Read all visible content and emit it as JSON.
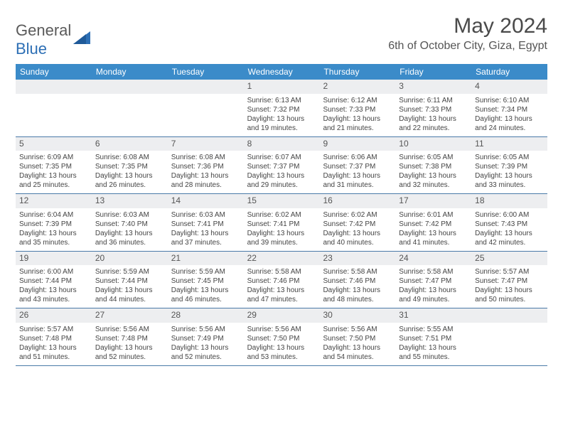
{
  "logo": {
    "part1": "General",
    "part2": "Blue"
  },
  "title": "May 2024",
  "location": "6th of October City, Giza, Egypt",
  "colors": {
    "header_bg": "#3b8bc9",
    "header_fg": "#ffffff",
    "daynum_bg": "#edeef0",
    "border": "#4a7aa8",
    "logo_blue": "#2d6fb5"
  },
  "weekdays": [
    "Sunday",
    "Monday",
    "Tuesday",
    "Wednesday",
    "Thursday",
    "Friday",
    "Saturday"
  ],
  "weeks": [
    [
      null,
      null,
      null,
      {
        "n": "1",
        "sr": "6:13 AM",
        "ss": "7:32 PM",
        "dl": "13 hours and 19 minutes."
      },
      {
        "n": "2",
        "sr": "6:12 AM",
        "ss": "7:33 PM",
        "dl": "13 hours and 21 minutes."
      },
      {
        "n": "3",
        "sr": "6:11 AM",
        "ss": "7:33 PM",
        "dl": "13 hours and 22 minutes."
      },
      {
        "n": "4",
        "sr": "6:10 AM",
        "ss": "7:34 PM",
        "dl": "13 hours and 24 minutes."
      }
    ],
    [
      {
        "n": "5",
        "sr": "6:09 AM",
        "ss": "7:35 PM",
        "dl": "13 hours and 25 minutes."
      },
      {
        "n": "6",
        "sr": "6:08 AM",
        "ss": "7:35 PM",
        "dl": "13 hours and 26 minutes."
      },
      {
        "n": "7",
        "sr": "6:08 AM",
        "ss": "7:36 PM",
        "dl": "13 hours and 28 minutes."
      },
      {
        "n": "8",
        "sr": "6:07 AM",
        "ss": "7:37 PM",
        "dl": "13 hours and 29 minutes."
      },
      {
        "n": "9",
        "sr": "6:06 AM",
        "ss": "7:37 PM",
        "dl": "13 hours and 31 minutes."
      },
      {
        "n": "10",
        "sr": "6:05 AM",
        "ss": "7:38 PM",
        "dl": "13 hours and 32 minutes."
      },
      {
        "n": "11",
        "sr": "6:05 AM",
        "ss": "7:39 PM",
        "dl": "13 hours and 33 minutes."
      }
    ],
    [
      {
        "n": "12",
        "sr": "6:04 AM",
        "ss": "7:39 PM",
        "dl": "13 hours and 35 minutes."
      },
      {
        "n": "13",
        "sr": "6:03 AM",
        "ss": "7:40 PM",
        "dl": "13 hours and 36 minutes."
      },
      {
        "n": "14",
        "sr": "6:03 AM",
        "ss": "7:41 PM",
        "dl": "13 hours and 37 minutes."
      },
      {
        "n": "15",
        "sr": "6:02 AM",
        "ss": "7:41 PM",
        "dl": "13 hours and 39 minutes."
      },
      {
        "n": "16",
        "sr": "6:02 AM",
        "ss": "7:42 PM",
        "dl": "13 hours and 40 minutes."
      },
      {
        "n": "17",
        "sr": "6:01 AM",
        "ss": "7:42 PM",
        "dl": "13 hours and 41 minutes."
      },
      {
        "n": "18",
        "sr": "6:00 AM",
        "ss": "7:43 PM",
        "dl": "13 hours and 42 minutes."
      }
    ],
    [
      {
        "n": "19",
        "sr": "6:00 AM",
        "ss": "7:44 PM",
        "dl": "13 hours and 43 minutes."
      },
      {
        "n": "20",
        "sr": "5:59 AM",
        "ss": "7:44 PM",
        "dl": "13 hours and 44 minutes."
      },
      {
        "n": "21",
        "sr": "5:59 AM",
        "ss": "7:45 PM",
        "dl": "13 hours and 46 minutes."
      },
      {
        "n": "22",
        "sr": "5:58 AM",
        "ss": "7:46 PM",
        "dl": "13 hours and 47 minutes."
      },
      {
        "n": "23",
        "sr": "5:58 AM",
        "ss": "7:46 PM",
        "dl": "13 hours and 48 minutes."
      },
      {
        "n": "24",
        "sr": "5:58 AM",
        "ss": "7:47 PM",
        "dl": "13 hours and 49 minutes."
      },
      {
        "n": "25",
        "sr": "5:57 AM",
        "ss": "7:47 PM",
        "dl": "13 hours and 50 minutes."
      }
    ],
    [
      {
        "n": "26",
        "sr": "5:57 AM",
        "ss": "7:48 PM",
        "dl": "13 hours and 51 minutes."
      },
      {
        "n": "27",
        "sr": "5:56 AM",
        "ss": "7:48 PM",
        "dl": "13 hours and 52 minutes."
      },
      {
        "n": "28",
        "sr": "5:56 AM",
        "ss": "7:49 PM",
        "dl": "13 hours and 52 minutes."
      },
      {
        "n": "29",
        "sr": "5:56 AM",
        "ss": "7:50 PM",
        "dl": "13 hours and 53 minutes."
      },
      {
        "n": "30",
        "sr": "5:56 AM",
        "ss": "7:50 PM",
        "dl": "13 hours and 54 minutes."
      },
      {
        "n": "31",
        "sr": "5:55 AM",
        "ss": "7:51 PM",
        "dl": "13 hours and 55 minutes."
      },
      null
    ]
  ],
  "labels": {
    "sunrise": "Sunrise:",
    "sunset": "Sunset:",
    "daylight": "Daylight:"
  }
}
